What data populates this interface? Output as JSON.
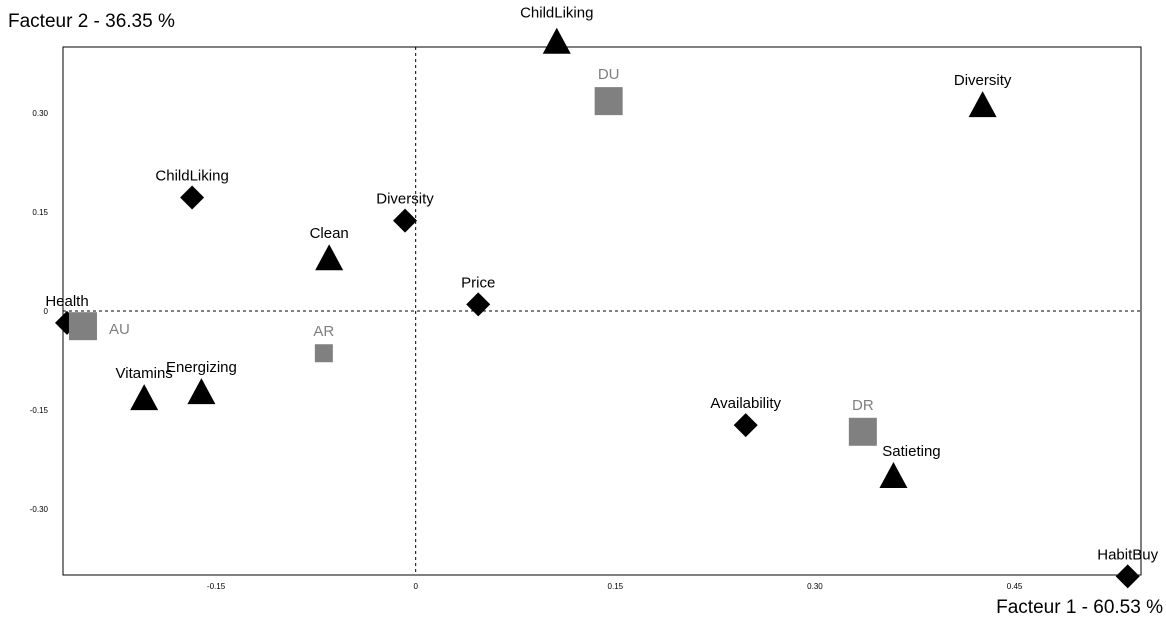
{
  "chart_data": {
    "type": "scatter",
    "title": "",
    "xlabel": "Facteur 1  -  60.53 %",
    "ylabel": "Facteur 2  -  36.35 %",
    "xlim": [
      -0.265,
      0.545
    ],
    "ylim": [
      -0.4,
      0.4
    ],
    "x_ticks": [
      {
        "value": -0.15,
        "label": "-0.15"
      },
      {
        "value": 0,
        "label": "0"
      },
      {
        "value": 0.15,
        "label": "0.15"
      },
      {
        "value": 0.3,
        "label": "0.30"
      },
      {
        "value": 0.45,
        "label": "0.45"
      }
    ],
    "y_ticks": [
      {
        "value": 0.3,
        "label": "0.30"
      },
      {
        "value": 0.15,
        "label": "0.15"
      },
      {
        "value": 0,
        "label": "0"
      },
      {
        "value": -0.15,
        "label": "-0.15"
      },
      {
        "value": -0.3,
        "label": "-0.30"
      }
    ],
    "grid": false,
    "reference_lines": {
      "x": 0,
      "y": 0,
      "style": "dashed"
    },
    "colors": {
      "diamond": "#000000",
      "triangle": "#000000",
      "square": "#808080",
      "group_label": "#7f7f7f"
    },
    "series": [
      {
        "marker": "diamond",
        "points": [
          {
            "label": "Health",
            "x": -0.262,
            "y": -0.018
          },
          {
            "label": "ChildLiking",
            "x": -0.168,
            "y": 0.172
          },
          {
            "label": "Diversity",
            "x": -0.008,
            "y": 0.137
          },
          {
            "label": "Price",
            "x": 0.047,
            "y": 0.01
          },
          {
            "label": "Availability",
            "x": 0.248,
            "y": -0.173
          },
          {
            "label": "HabitBuy",
            "x": 0.535,
            "y": -0.402
          }
        ]
      },
      {
        "marker": "triangle",
        "points": [
          {
            "label": "ChildLiking",
            "x": 0.106,
            "y": 0.408
          },
          {
            "label": "Diversity",
            "x": 0.426,
            "y": 0.312
          },
          {
            "label": "Clean",
            "x": -0.065,
            "y": 0.08
          },
          {
            "label": "Vitamins",
            "x": -0.204,
            "y": -0.132
          },
          {
            "label": "Energizing",
            "x": -0.161,
            "y": -0.123
          },
          {
            "label": "Satieting",
            "x": 0.359,
            "y": -0.25
          }
        ]
      },
      {
        "marker": "square",
        "points": [
          {
            "label": "DU",
            "x": 0.145,
            "y": 0.318
          },
          {
            "label": "AU",
            "x": -0.25,
            "y": -0.023
          },
          {
            "label": "AR",
            "x": -0.069,
            "y": -0.064
          },
          {
            "label": "DR",
            "x": 0.336,
            "y": -0.183
          }
        ]
      }
    ]
  }
}
